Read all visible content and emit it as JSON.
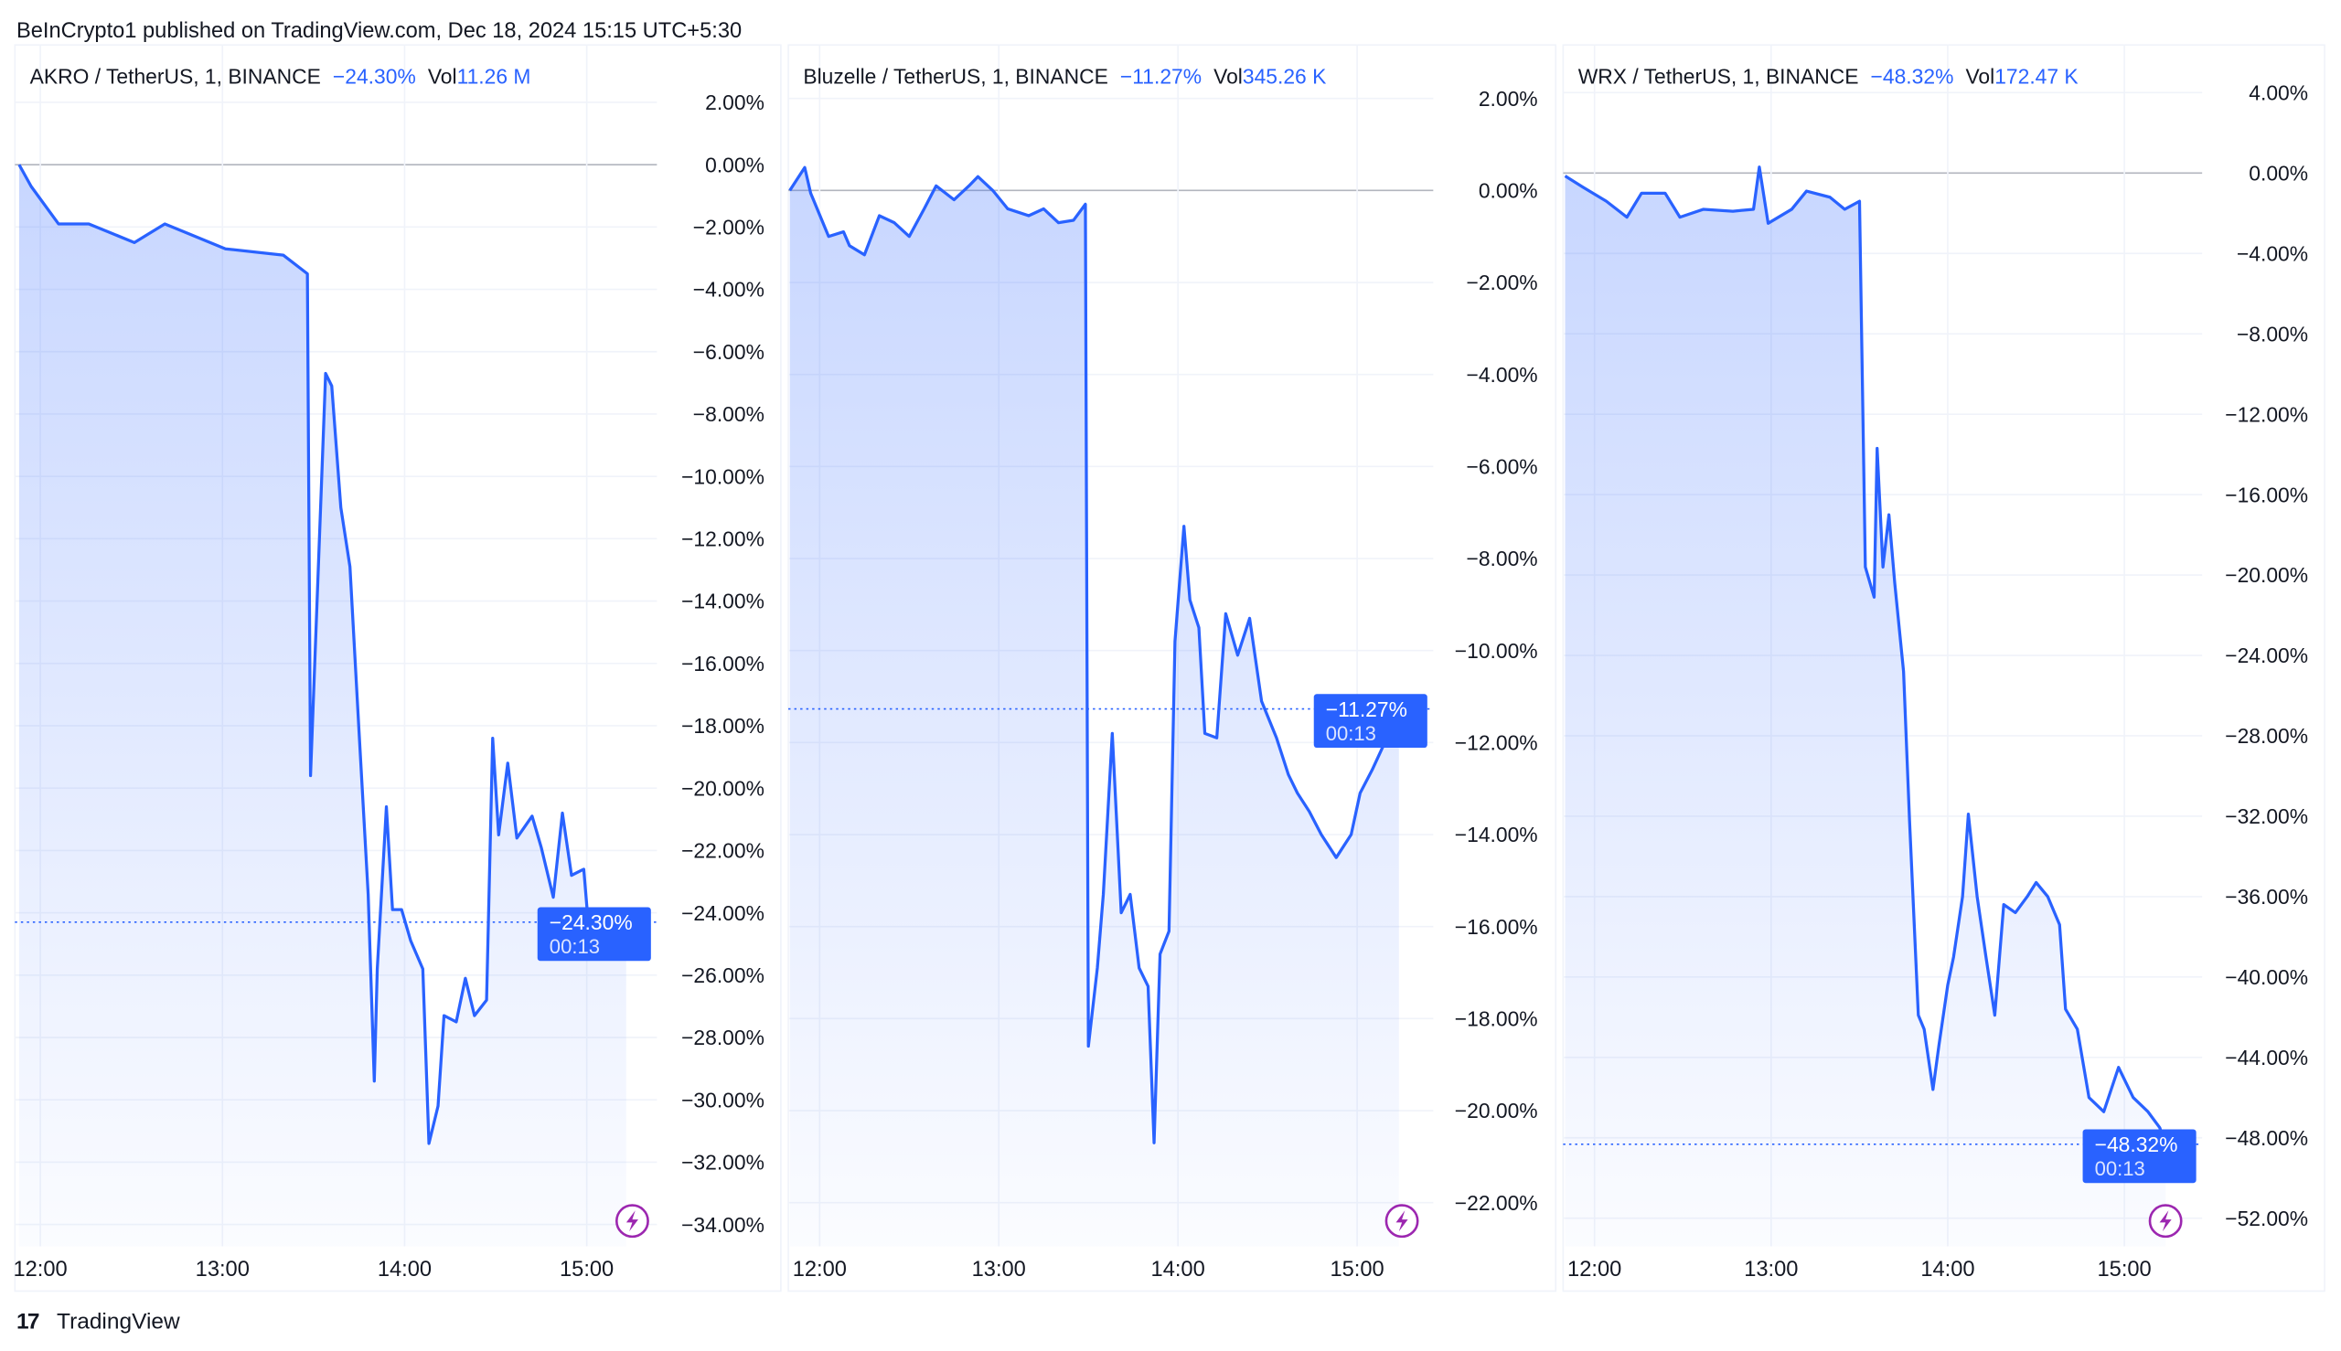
{
  "header": {
    "published": "BeInCrypto1 published on TradingView.com, Dec 18, 2024 15:15 UTC+5:30"
  },
  "footer": {
    "brand": "TradingView",
    "logo_text": "17"
  },
  "colors": {
    "line": "#2962ff",
    "accent_text": "#2962ff",
    "badge": "#2962ff",
    "icon": "#9c27b0",
    "grid": "#f0f3fa",
    "zero_line": "#b2b5be"
  },
  "chart_data": [
    {
      "type": "area",
      "legend": {
        "symbol": "AKRO / TetherUS, 1, BINANCE",
        "change": "−24.30%",
        "vol_label": "Vol",
        "vol": "11.26 M"
      },
      "badge": {
        "value": "−24.30%",
        "countdown": "00:13"
      },
      "last_value": -24.3,
      "ylim": [
        -34.7,
        3.6
      ],
      "y_ticks": [
        2,
        0,
        -2,
        -4,
        -6,
        -8,
        -10,
        -12,
        -14,
        -16,
        -18,
        -20,
        -22,
        -24,
        -26,
        -28,
        -30,
        -32,
        -34
      ],
      "y_tick_labels": [
        "2.00%",
        "0.00%",
        "−2.00%",
        "−4.00%",
        "−6.00%",
        "−8.00%",
        "−10.00%",
        "−12.00%",
        "−14.00%",
        "−16.00%",
        "−18.00%",
        "−20.00%",
        "−22.00%",
        "−24.00%",
        "−26.00%",
        "−28.00%",
        "−30.00%",
        "−32.00%",
        "−34.00%"
      ],
      "x_ticks": [
        "12:00",
        "13:00",
        "14:00",
        "15:00"
      ],
      "icon": "lightning-icon",
      "points": [
        [
          "11:53",
          0
        ],
        [
          "11:57",
          -0.7
        ],
        [
          "12:06",
          -1.9
        ],
        [
          "12:16",
          -1.9
        ],
        [
          "12:31",
          -2.5
        ],
        [
          "12:41",
          -1.9
        ],
        [
          "13:01",
          -2.7
        ],
        [
          "13:20",
          -2.9
        ],
        [
          "13:28",
          -3.5
        ],
        [
          "13:29",
          -19.6
        ],
        [
          "13:34",
          -6.7
        ],
        [
          "13:36",
          -7.1
        ],
        [
          "13:39",
          -11
        ],
        [
          "13:42",
          -12.9
        ],
        [
          "13:45",
          -18.2
        ],
        [
          "13:48",
          -23.4
        ],
        [
          "13:50",
          -29.4
        ],
        [
          "13:51",
          -25.8
        ],
        [
          "13:54",
          -20.6
        ],
        [
          "13:56",
          -23.9
        ],
        [
          "13:59",
          -23.9
        ],
        [
          "14:02",
          -24.9
        ],
        [
          "14:06",
          -25.8
        ],
        [
          "14:08",
          -31.4
        ],
        [
          "14:11",
          -30.2
        ],
        [
          "14:13",
          -27.3
        ],
        [
          "14:17",
          -27.5
        ],
        [
          "14:20",
          -26.1
        ],
        [
          "14:23",
          -27.3
        ],
        [
          "14:27",
          -26.8
        ],
        [
          "14:29",
          -18.4
        ],
        [
          "14:31",
          -21.5
        ],
        [
          "14:34",
          -19.2
        ],
        [
          "14:37",
          -21.6
        ],
        [
          "14:42",
          -20.9
        ],
        [
          "14:45",
          -21.9
        ],
        [
          "14:49",
          -23.5
        ],
        [
          "14:52",
          -20.8
        ],
        [
          "14:55",
          -22.8
        ],
        [
          "14:59",
          -22.6
        ],
        [
          "15:01",
          -24.9
        ],
        [
          "15:04",
          -24
        ],
        [
          "15:08",
          -24.9
        ],
        [
          "15:13",
          -24.3
        ]
      ]
    },
    {
      "type": "area",
      "legend": {
        "symbol": "Bluzelle / TetherUS, 1, BINANCE",
        "change": "−11.27%",
        "vol_label": "Vol",
        "vol": "345.26 K"
      },
      "badge": {
        "value": "−11.27%",
        "countdown": "00:13"
      },
      "last_value": -11.27,
      "ylim": [
        -22.95,
        3.0
      ],
      "y_ticks": [
        2,
        0,
        -2,
        -4,
        -6,
        -8,
        -10,
        -12,
        -14,
        -16,
        -18,
        -20,
        -22
      ],
      "y_tick_labels": [
        "2.00%",
        "0.00%",
        "−2.00%",
        "−4.00%",
        "−6.00%",
        "−8.00%",
        "−10.00%",
        "−12.00%",
        "−14.00%",
        "−16.00%",
        "−18.00%",
        "−20.00%",
        "−22.00%"
      ],
      "x_ticks": [
        "12:00",
        "13:00",
        "14:00",
        "15:00"
      ],
      "icon": "lightning-icon",
      "points": [
        [
          "11:50",
          0
        ],
        [
          "11:55",
          0.5
        ],
        [
          "11:57",
          -0.06
        ],
        [
          "12:03",
          -1.0
        ],
        [
          "12:08",
          -0.9
        ],
        [
          "12:10",
          -1.2
        ],
        [
          "12:15",
          -1.4
        ],
        [
          "12:20",
          -0.55
        ],
        [
          "12:25",
          -0.7
        ],
        [
          "12:30",
          -1.0
        ],
        [
          "12:35",
          -0.4
        ],
        [
          "12:39",
          0.1
        ],
        [
          "12:45",
          -0.2
        ],
        [
          "12:50",
          0.1
        ],
        [
          "12:53",
          0.3
        ],
        [
          "12:58",
          0
        ],
        [
          "13:03",
          -0.4
        ],
        [
          "13:10",
          -0.55
        ],
        [
          "13:15",
          -0.4
        ],
        [
          "13:20",
          -0.7
        ],
        [
          "13:25",
          -0.65
        ],
        [
          "13:29",
          -0.3
        ],
        [
          "13:30",
          -18.6
        ],
        [
          "13:33",
          -16.9
        ],
        [
          "13:35",
          -15.3
        ],
        [
          "13:38",
          -11.8
        ],
        [
          "13:41",
          -15.7
        ],
        [
          "13:44",
          -15.3
        ],
        [
          "13:47",
          -16.9
        ],
        [
          "13:50",
          -17.3
        ],
        [
          "13:52",
          -20.7
        ],
        [
          "13:54",
          -16.6
        ],
        [
          "13:57",
          -16.1
        ],
        [
          "13:59",
          -9.8
        ],
        [
          "14:02",
          -7.3
        ],
        [
          "14:04",
          -8.9
        ],
        [
          "14:07",
          -9.5
        ],
        [
          "14:09",
          -11.8
        ],
        [
          "14:13",
          -11.9
        ],
        [
          "14:16",
          -9.2
        ],
        [
          "14:20",
          -10.1
        ],
        [
          "14:24",
          -9.3
        ],
        [
          "14:28",
          -11.1
        ],
        [
          "14:33",
          -11.9
        ],
        [
          "14:37",
          -12.7
        ],
        [
          "14:40",
          -13.1
        ],
        [
          "14:44",
          -13.5
        ],
        [
          "14:48",
          -14.0
        ],
        [
          "14:53",
          -14.5
        ],
        [
          "14:58",
          -14.0
        ],
        [
          "15:01",
          -13.1
        ],
        [
          "15:05",
          -12.6
        ],
        [
          "15:10",
          -11.9
        ],
        [
          "15:14",
          -11.27
        ]
      ]
    },
    {
      "type": "area",
      "legend": {
        "symbol": "WRX / TetherUS, 1, BINANCE",
        "change": "−48.32%",
        "vol_label": "Vol",
        "vol": "172.47 K"
      },
      "badge": {
        "value": "−48.32%",
        "countdown": "00:13"
      },
      "last_value": -48.32,
      "ylim": [
        -53.4,
        6.0
      ],
      "y_ticks": [
        4,
        0,
        -4,
        -8,
        -12,
        -16,
        -20,
        -24,
        -28,
        -32,
        -36,
        -40,
        -44,
        -48,
        -52
      ],
      "y_tick_labels": [
        "4.00%",
        "0.00%",
        "−4.00%",
        "−8.00%",
        "−12.00%",
        "−16.00%",
        "−20.00%",
        "−24.00%",
        "−28.00%",
        "−32.00%",
        "−36.00%",
        "−40.00%",
        "−44.00%",
        "−48.00%",
        "−52.00%"
      ],
      "x_ticks": [
        "12:00",
        "13:00",
        "14:00",
        "15:00"
      ],
      "icon": "lightning-icon",
      "points": [
        [
          "11:50",
          -0.15
        ],
        [
          "11:56",
          -0.7
        ],
        [
          "12:04",
          -1.4
        ],
        [
          "12:11",
          -2.2
        ],
        [
          "12:16",
          -1.0
        ],
        [
          "12:24",
          -1.0
        ],
        [
          "12:29",
          -2.2
        ],
        [
          "12:37",
          -1.8
        ],
        [
          "12:47",
          -1.9
        ],
        [
          "12:54",
          -1.8
        ],
        [
          "12:56",
          0.3
        ],
        [
          "12:59",
          -2.5
        ],
        [
          "13:07",
          -1.8
        ],
        [
          "13:12",
          -0.9
        ],
        [
          "13:20",
          -1.2
        ],
        [
          "13:25",
          -1.8
        ],
        [
          "13:30",
          -1.4
        ],
        [
          "13:32",
          -19.6
        ],
        [
          "13:35",
          -21.1
        ],
        [
          "13:36",
          -13.7
        ],
        [
          "13:38",
          -19.6
        ],
        [
          "13:40",
          -17.0
        ],
        [
          "13:42",
          -20.4
        ],
        [
          "13:45",
          -24.8
        ],
        [
          "13:47",
          -32.2
        ],
        [
          "13:50",
          -41.9
        ],
        [
          "13:52",
          -42.6
        ],
        [
          "13:55",
          -45.6
        ],
        [
          "13:57",
          -43.4
        ],
        [
          "14:00",
          -40.4
        ],
        [
          "14:02",
          -39.0
        ],
        [
          "14:05",
          -36.0
        ],
        [
          "14:07",
          -31.9
        ],
        [
          "14:10",
          -36.0
        ],
        [
          "14:13",
          -39.0
        ],
        [
          "14:16",
          -41.9
        ],
        [
          "14:19",
          -36.4
        ],
        [
          "14:23",
          -36.8
        ],
        [
          "14:27",
          -36.0
        ],
        [
          "14:30",
          -35.3
        ],
        [
          "14:34",
          -36.0
        ],
        [
          "14:38",
          -37.4
        ],
        [
          "14:40",
          -41.6
        ],
        [
          "14:44",
          -42.6
        ],
        [
          "14:48",
          -46.0
        ],
        [
          "14:53",
          -46.7
        ],
        [
          "14:58",
          -44.5
        ],
        [
          "15:03",
          -46.0
        ],
        [
          "15:08",
          -46.7
        ],
        [
          "15:12",
          -47.5
        ],
        [
          "15:14",
          -48.32
        ]
      ]
    }
  ]
}
